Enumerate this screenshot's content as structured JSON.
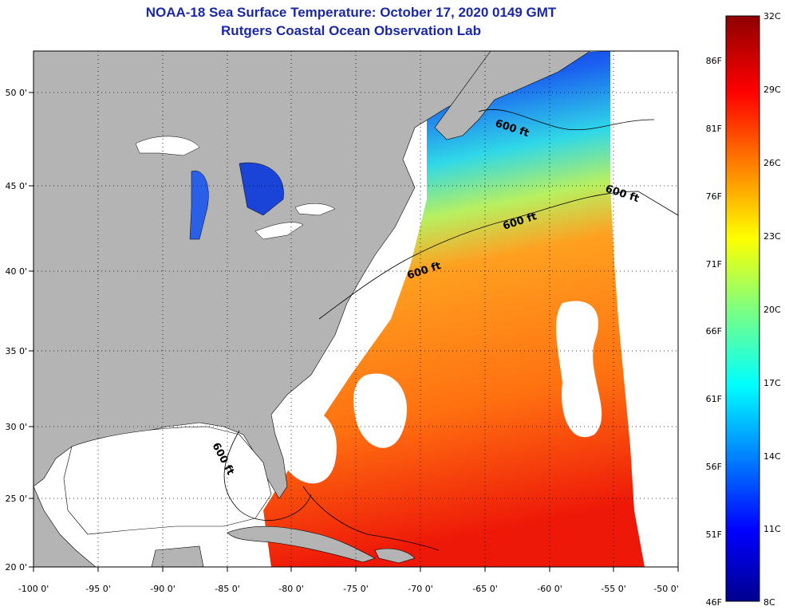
{
  "title": {
    "line1": "NOAA-18 Sea Surface Temperature:  October 17, 2020 0149 GMT",
    "line2": "Rutgers Coastal Ocean Observation Lab"
  },
  "axes": {
    "lat_labels": [
      "50 0'",
      "45 0'",
      "40 0'",
      "35 0'",
      "30 0'",
      "25 0'",
      "20 0'"
    ],
    "lon_labels": [
      "-100 0'",
      "-95 0'",
      "-90 0'",
      "-85 0'",
      "-80 0'",
      "-75 0'",
      "-70 0'",
      "-65 0'",
      "-60 0'",
      "-55 0'",
      "-50 0'"
    ]
  },
  "contours": {
    "label": "600 ft"
  },
  "colorbar": {
    "celsius_labels": [
      "32C",
      "29C",
      "26C",
      "23C",
      "20C",
      "17C",
      "14C",
      "11C",
      "8C"
    ],
    "fahrenheit_labels": [
      "86F",
      "81F",
      "76F",
      "71F",
      "66F",
      "61F",
      "56F",
      "51F",
      "46F"
    ]
  },
  "colors": {
    "title": "#1a28a8",
    "land": "#b4b4b4",
    "no_data": "#ffffff",
    "cold": "#00008f",
    "warm": "#8f0000"
  }
}
